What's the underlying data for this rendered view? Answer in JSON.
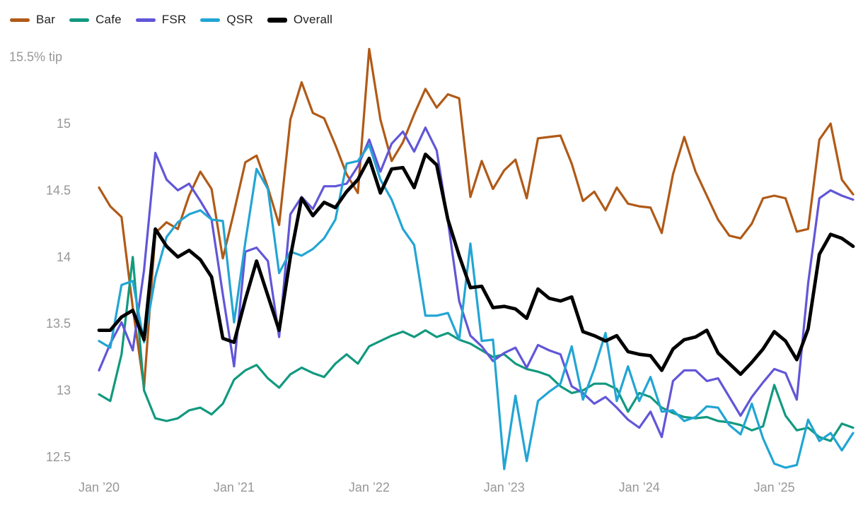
{
  "chart_data": {
    "type": "line",
    "title": "",
    "legend_position": "top-left",
    "grid": false,
    "y_axis": {
      "top_label": "15.5% tip",
      "top_label_value": 15.5,
      "ticks": [
        {
          "value": 15,
          "label": "15"
        },
        {
          "value": 14.5,
          "label": "14.5"
        },
        {
          "value": 14,
          "label": "14"
        },
        {
          "value": 13.5,
          "label": "13.5"
        },
        {
          "value": 13,
          "label": "13"
        },
        {
          "value": 12.5,
          "label": "12.5"
        }
      ],
      "range": [
        12.5,
        15.5
      ]
    },
    "x_axis": {
      "tick_labels": [
        "Jan ’20",
        "Jan ’21",
        "Jan ’22",
        "Jan ’23",
        "Jan ’24",
        "Jan ’25"
      ],
      "tick_month_indices": [
        0,
        12,
        24,
        36,
        48,
        60
      ]
    },
    "months": [
      "2020-01",
      "2020-02",
      "2020-03",
      "2020-04",
      "2020-05",
      "2020-06",
      "2020-07",
      "2020-08",
      "2020-09",
      "2020-10",
      "2020-11",
      "2020-12",
      "2021-01",
      "2021-02",
      "2021-03",
      "2021-04",
      "2021-05",
      "2021-06",
      "2021-07",
      "2021-08",
      "2021-09",
      "2021-10",
      "2021-11",
      "2021-12",
      "2022-01",
      "2022-02",
      "2022-03",
      "2022-04",
      "2022-05",
      "2022-06",
      "2022-07",
      "2022-08",
      "2022-09",
      "2022-10",
      "2022-11",
      "2022-12",
      "2023-01",
      "2023-02",
      "2023-03",
      "2023-04",
      "2023-05",
      "2023-06",
      "2023-07",
      "2023-08",
      "2023-09",
      "2023-10",
      "2023-11",
      "2023-12",
      "2024-01",
      "2024-02",
      "2024-03",
      "2024-04",
      "2024-05",
      "2024-06",
      "2024-07",
      "2024-08",
      "2024-09",
      "2024-10",
      "2024-11",
      "2024-12",
      "2025-01",
      "2025-02",
      "2025-03",
      "2025-04",
      "2025-05",
      "2025-06",
      "2025-07",
      "2025-08"
    ],
    "series": [
      {
        "name": "Bar",
        "color": "#b05a17",
        "width": 3.2,
        "values": [
          14.52,
          14.38,
          14.3,
          13.62,
          13.02,
          14.18,
          14.26,
          14.21,
          14.46,
          14.64,
          14.51,
          13.99,
          14.34,
          14.71,
          14.76,
          14.52,
          14.24,
          15.03,
          15.31,
          15.08,
          15.04,
          14.84,
          14.62,
          14.48,
          15.56,
          15.03,
          14.72,
          14.86,
          15.07,
          15.26,
          15.12,
          15.22,
          15.19,
          14.45,
          14.72,
          14.51,
          14.65,
          14.73,
          14.44,
          14.89,
          14.9,
          14.91,
          14.7,
          14.42,
          14.49,
          14.35,
          14.52,
          14.4,
          14.38,
          14.37,
          14.18,
          14.62,
          14.9,
          14.64,
          14.46,
          14.28,
          14.16,
          14.14,
          14.25,
          14.44,
          14.46,
          14.44,
          14.19,
          14.21,
          14.88,
          15.0,
          14.58,
          14.47
        ]
      },
      {
        "name": "Cafe",
        "color": "#12997f",
        "width": 3.2,
        "values": [
          12.97,
          12.92,
          13.27,
          14.0,
          13.0,
          12.79,
          12.77,
          12.79,
          12.85,
          12.87,
          12.82,
          12.9,
          13.08,
          13.15,
          13.19,
          13.09,
          13.02,
          13.12,
          13.17,
          13.13,
          13.1,
          13.2,
          13.27,
          13.2,
          13.33,
          13.37,
          13.41,
          13.44,
          13.4,
          13.45,
          13.4,
          13.43,
          13.38,
          13.35,
          13.3,
          13.25,
          13.27,
          13.2,
          13.16,
          13.14,
          13.11,
          13.03,
          12.98,
          13.0,
          13.05,
          13.05,
          13.01,
          12.84,
          12.98,
          12.95,
          12.87,
          12.83,
          12.8,
          12.79,
          12.8,
          12.77,
          12.76,
          12.74,
          12.7,
          12.73,
          13.04,
          12.81,
          12.7,
          12.72,
          12.65,
          12.62,
          12.75,
          12.72
        ]
      },
      {
        "name": "FSR",
        "color": "#6156d8",
        "width": 3.2,
        "values": [
          13.15,
          13.35,
          13.51,
          13.3,
          13.9,
          14.78,
          14.58,
          14.5,
          14.55,
          14.42,
          14.28,
          13.72,
          13.18,
          14.04,
          14.07,
          13.97,
          13.4,
          14.32,
          14.45,
          14.36,
          14.53,
          14.53,
          14.55,
          14.68,
          14.88,
          14.64,
          14.85,
          14.94,
          14.79,
          14.97,
          14.8,
          14.27,
          13.67,
          13.41,
          13.33,
          13.22,
          13.28,
          13.32,
          13.17,
          13.34,
          13.3,
          13.27,
          13.03,
          12.98,
          12.9,
          12.95,
          12.87,
          12.78,
          12.72,
          12.84,
          12.65,
          13.07,
          13.15,
          13.15,
          13.07,
          13.09,
          12.95,
          12.81,
          12.95,
          13.06,
          13.16,
          13.13,
          12.93,
          13.8,
          14.44,
          14.5,
          14.46,
          14.43
        ]
      },
      {
        "name": "QSR",
        "color": "#22a5d4",
        "width": 3.2,
        "values": [
          13.37,
          13.32,
          13.79,
          13.82,
          13.36,
          13.85,
          14.15,
          14.26,
          14.32,
          14.35,
          14.28,
          14.27,
          13.51,
          14.11,
          14.66,
          14.51,
          13.88,
          14.04,
          14.01,
          14.06,
          14.14,
          14.28,
          14.7,
          14.72,
          14.84,
          14.58,
          14.43,
          14.21,
          14.09,
          13.56,
          13.56,
          13.58,
          13.38,
          14.1,
          13.37,
          13.38,
          12.41,
          12.96,
          12.47,
          12.92,
          12.99,
          13.05,
          13.33,
          12.93,
          13.16,
          13.43,
          12.92,
          13.18,
          12.92,
          13.1,
          12.84,
          12.85,
          12.77,
          12.8,
          12.88,
          12.87,
          12.74,
          12.67,
          12.9,
          12.64,
          12.45,
          12.42,
          12.44,
          12.78,
          12.62,
          12.68,
          12.55,
          12.68
        ]
      },
      {
        "name": "Overall",
        "color": "#000000",
        "width": 4.8,
        "values": [
          13.45,
          13.45,
          13.55,
          13.6,
          13.38,
          14.21,
          14.08,
          14.0,
          14.05,
          13.98,
          13.85,
          13.39,
          13.36,
          13.68,
          13.97,
          13.71,
          13.45,
          14.0,
          14.44,
          14.31,
          14.41,
          14.37,
          14.49,
          14.58,
          14.74,
          14.48,
          14.66,
          14.67,
          14.52,
          14.77,
          14.69,
          14.28,
          14.01,
          13.77,
          13.78,
          13.62,
          13.63,
          13.61,
          13.54,
          13.76,
          13.69,
          13.67,
          13.7,
          13.44,
          13.41,
          13.37,
          13.41,
          13.29,
          13.27,
          13.26,
          13.15,
          13.31,
          13.38,
          13.4,
          13.45,
          13.28,
          13.2,
          13.12,
          13.21,
          13.31,
          13.44,
          13.37,
          13.23,
          13.46,
          14.02,
          14.17,
          14.14,
          14.08
        ]
      }
    ]
  }
}
